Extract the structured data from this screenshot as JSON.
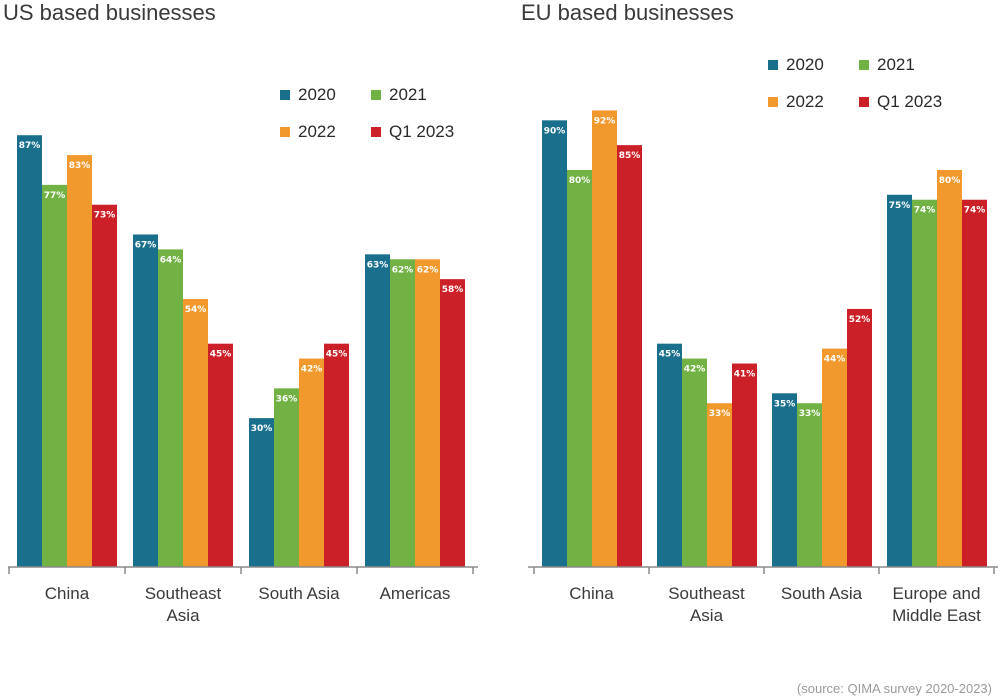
{
  "colors": {
    "2020": "#1a6f8c",
    "2021": "#72b244",
    "2022": "#f2992e",
    "Q1 2023": "#cc2029",
    "axis": "#8a8a8a",
    "text": "#3a3a3a"
  },
  "legend": [
    "2020",
    "2021",
    "2022",
    "Q1 2023"
  ],
  "source": "(source: QIMA survey 2020-2023)",
  "chart_data": [
    {
      "type": "bar",
      "title": "US based businesses",
      "categories": [
        [
          "China"
        ],
        [
          "Southeast",
          "Asia"
        ],
        [
          "South Asia"
        ],
        [
          "Americas"
        ]
      ],
      "series": [
        {
          "name": "2020",
          "values": [
            87,
            67,
            30,
            63
          ]
        },
        {
          "name": "2021",
          "values": [
            77,
            64,
            36,
            62
          ]
        },
        {
          "name": "2022",
          "values": [
            83,
            54,
            42,
            62
          ]
        },
        {
          "name": "Q1 2023",
          "values": [
            73,
            45,
            45,
            58
          ]
        }
      ],
      "data_label_suffix": "%",
      "ylim": [
        0,
        100
      ],
      "grid": false,
      "legend_position": "top-right"
    },
    {
      "type": "bar",
      "title": "EU based businesses",
      "categories": [
        [
          "China"
        ],
        [
          "Southeast",
          "Asia"
        ],
        [
          "South Asia"
        ],
        [
          "Europe and",
          "Middle East"
        ]
      ],
      "series": [
        {
          "name": "2020",
          "values": [
            90,
            45,
            35,
            75
          ]
        },
        {
          "name": "2021",
          "values": [
            80,
            42,
            33,
            74
          ]
        },
        {
          "name": "2022",
          "values": [
            92,
            33,
            44,
            80
          ]
        },
        {
          "name": "Q1 2023",
          "values": [
            85,
            41,
            52,
            74
          ]
        }
      ],
      "data_label_suffix": "%",
      "ylim": [
        0,
        100
      ],
      "grid": false,
      "legend_position": "top-right"
    }
  ]
}
